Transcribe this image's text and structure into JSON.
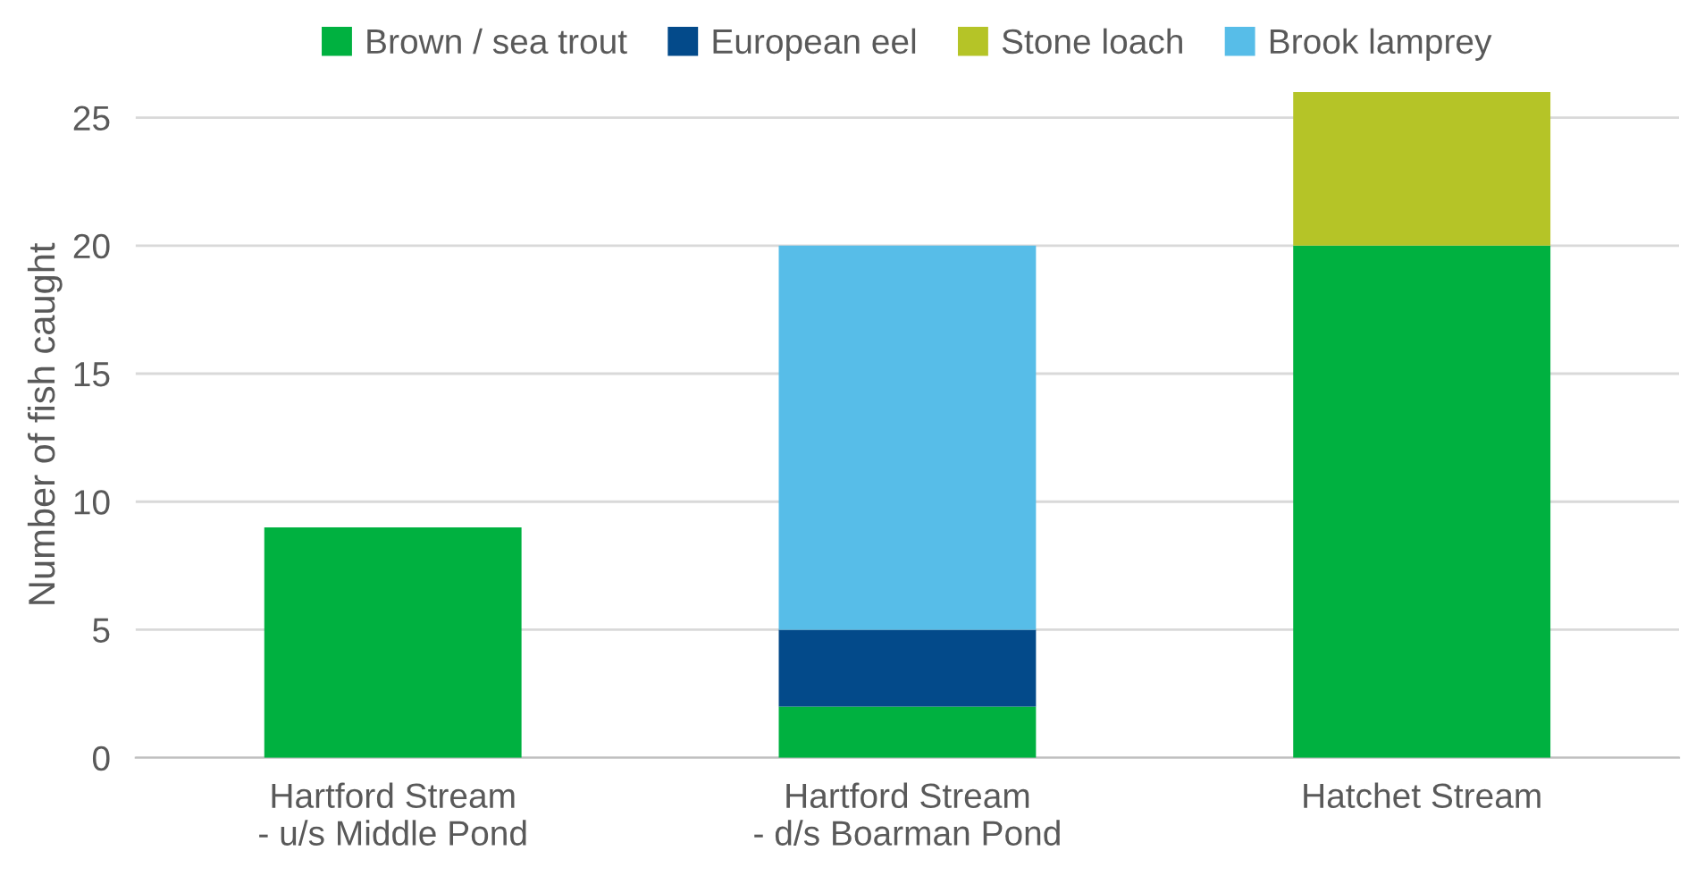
{
  "chart_data": {
    "type": "bar",
    "stacked": true,
    "ylabel": "Number of fish caught",
    "categories": [
      "Hartford Stream\n- u/s Middle Pond",
      "Hartford Stream\n- d/s Boarman Pond",
      "Hatchet Stream"
    ],
    "series": [
      {
        "name": "Brown / sea trout",
        "color": "#00b140",
        "values": [
          9,
          2,
          20
        ]
      },
      {
        "name": "European eel",
        "color": "#034a8a",
        "values": [
          null,
          3,
          null
        ]
      },
      {
        "name": "Stone loach",
        "color": "#b5c427",
        "values": [
          null,
          null,
          6
        ]
      },
      {
        "name": "Brook lamprey",
        "color": "#57bde8",
        "values": [
          null,
          15,
          null
        ]
      }
    ],
    "ylim": [
      0,
      26
    ],
    "yticks": [
      0,
      5,
      10,
      15,
      20,
      25
    ],
    "grid": "y",
    "legend": "top"
  }
}
